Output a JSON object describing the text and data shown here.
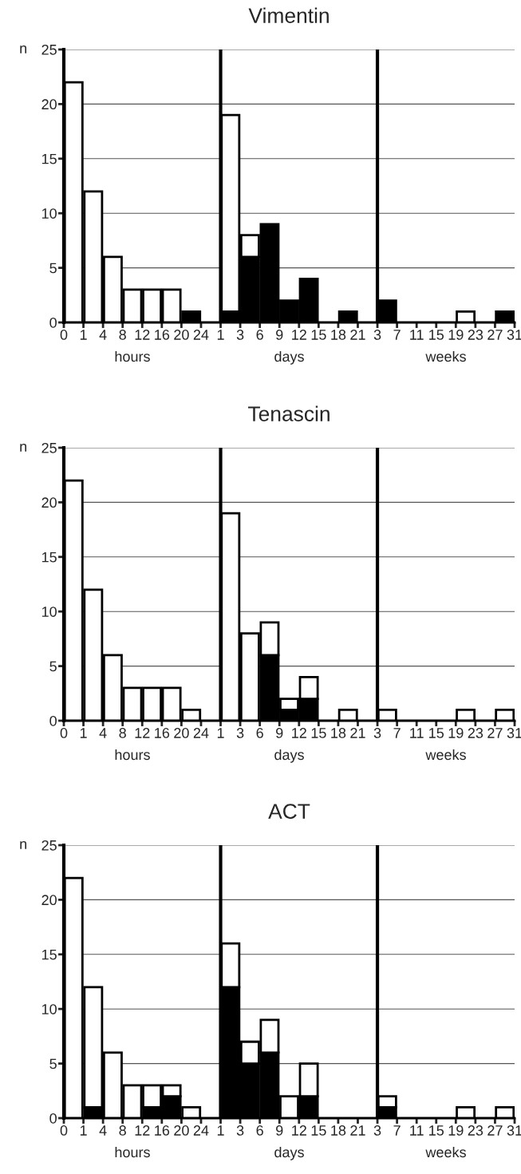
{
  "chart_data": [
    {
      "type": "bar",
      "stacked": true,
      "title": "Vimentin",
      "ylabel": "n",
      "categories": [
        null,
        null,
        null,
        null,
        null,
        null,
        null,
        null,
        null,
        null,
        null,
        null,
        null,
        null,
        null,
        null,
        null,
        null,
        null,
        null,
        null,
        null,
        null
      ],
      "ylim": [
        0,
        25
      ],
      "yticks": [
        0,
        5,
        10,
        15,
        20,
        25
      ],
      "grid": "y",
      "annotations": [
        "0",
        "1",
        "4",
        "8",
        "12",
        "16",
        "20",
        "24",
        "1",
        "3",
        "6",
        "9",
        "12",
        "15",
        "18",
        "21",
        "3",
        "7",
        "11",
        "15",
        "19",
        "23",
        "27",
        "31",
        "hours",
        "days",
        "weeks"
      ],
      "series": [
        {
          "color": "#000000",
          "values": [
            0,
            0,
            0,
            0,
            0,
            0,
            1,
            null,
            1,
            6,
            9,
            2,
            4,
            0,
            1,
            null,
            2,
            0,
            0,
            0,
            0,
            0,
            1
          ]
        },
        {
          "color": "#ffffff",
          "values": [
            22,
            12,
            6,
            3,
            3,
            3,
            0,
            null,
            18,
            2,
            0,
            0,
            0,
            0,
            0,
            null,
            0,
            0,
            0,
            0,
            1,
            0,
            0
          ]
        }
      ]
    },
    {
      "type": "bar",
      "stacked": true,
      "title": "Tenascin",
      "ylabel": "n",
      "categories": [
        null,
        null,
        null,
        null,
        null,
        null,
        null,
        null,
        null,
        null,
        null,
        null,
        null,
        null,
        null,
        null,
        null,
        null,
        null,
        null,
        null,
        null,
        null
      ],
      "ylim": [
        0,
        25
      ],
      "yticks": [
        0,
        5,
        10,
        15,
        20,
        25
      ],
      "grid": "y",
      "annotations": [
        "0",
        "1",
        "4",
        "8",
        "12",
        "16",
        "20",
        "24",
        "1",
        "3",
        "6",
        "9",
        "12",
        "15",
        "18",
        "21",
        "3",
        "7",
        "11",
        "15",
        "19",
        "23",
        "27",
        "31",
        "hours",
        "days",
        "weeks"
      ],
      "series": [
        {
          "color": "#000000",
          "values": [
            0,
            0,
            0,
            0,
            0,
            0,
            0,
            null,
            0,
            0,
            6,
            1,
            2,
            0,
            0,
            null,
            0,
            0,
            0,
            0,
            0,
            0,
            0
          ]
        },
        {
          "color": "#ffffff",
          "values": [
            22,
            12,
            6,
            3,
            3,
            3,
            1,
            null,
            19,
            8,
            3,
            1,
            2,
            0,
            1,
            null,
            1,
            0,
            0,
            0,
            1,
            0,
            1
          ]
        }
      ]
    },
    {
      "type": "bar",
      "stacked": true,
      "title": "ACT",
      "ylabel": "n",
      "categories": [
        null,
        null,
        null,
        null,
        null,
        null,
        null,
        null,
        null,
        null,
        null,
        null,
        null,
        null,
        null,
        null,
        null,
        null,
        null,
        null,
        null,
        null,
        null
      ],
      "ylim": [
        0,
        25
      ],
      "yticks": [
        0,
        5,
        10,
        15,
        20,
        25
      ],
      "grid": "y",
      "annotations": [
        "0",
        "1",
        "4",
        "8",
        "12",
        "16",
        "20",
        "24",
        "1",
        "3",
        "6",
        "9",
        "12",
        "15",
        "18",
        "21",
        "3",
        "7",
        "11",
        "15",
        "19",
        "23",
        "27",
        "31",
        "hours",
        "days",
        "weeks"
      ],
      "series": [
        {
          "color": "#000000",
          "values": [
            0,
            1,
            0,
            0,
            1,
            2,
            0,
            null,
            12,
            5,
            6,
            0,
            2,
            0,
            0,
            null,
            1,
            0,
            0,
            0,
            0,
            0,
            0
          ]
        },
        {
          "color": "#ffffff",
          "values": [
            22,
            11,
            6,
            3,
            2,
            1,
            1,
            null,
            4,
            2,
            3,
            2,
            3,
            0,
            0,
            null,
            1,
            0,
            0,
            0,
            1,
            0,
            1
          ]
        }
      ]
    }
  ]
}
